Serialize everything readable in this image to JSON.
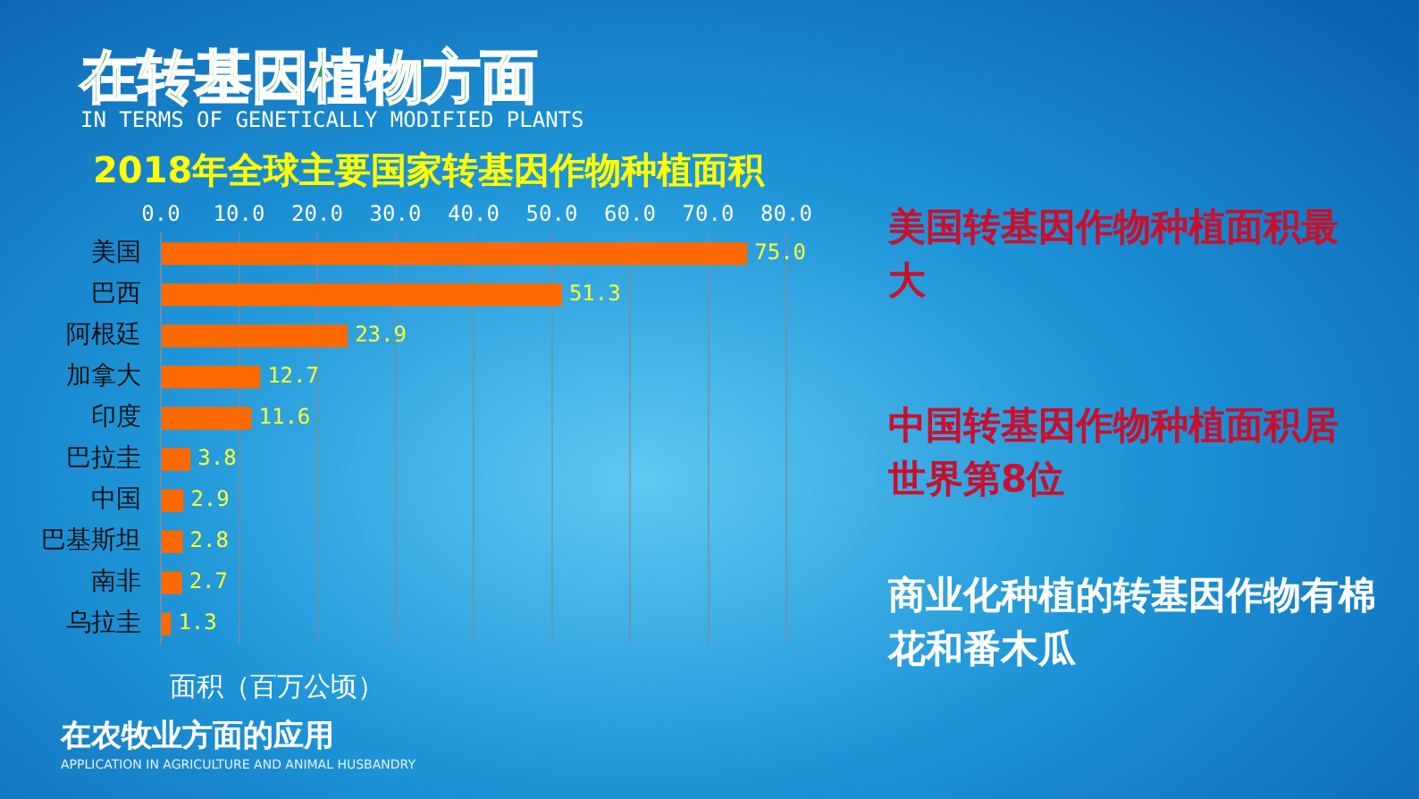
{
  "chart_data": {
    "type": "bar",
    "orientation": "horizontal",
    "title": "2018年全球主要国家转基因作物种植面积",
    "xlabel": "面积（百万公顷）",
    "categories": [
      "美国",
      "巴西",
      "阿根廷",
      "加拿大",
      "印度",
      "巴拉圭",
      "中国",
      "巴基斯坦",
      "南非",
      "乌拉圭"
    ],
    "values": [
      75.0,
      51.3,
      23.9,
      12.7,
      11.6,
      3.8,
      2.9,
      2.8,
      2.7,
      1.3
    ],
    "value_labels": [
      "75.0",
      "51.3",
      "23.9",
      "12.7",
      "11.6",
      "3.8",
      "2.9",
      "2.8",
      "2.7",
      "1.3"
    ],
    "color": "#ff6a00",
    "xlim": [
      0,
      80
    ],
    "xticks": [
      {
        "value": 0,
        "label": "0.0"
      },
      {
        "value": 10,
        "label": "10.0"
      },
      {
        "value": 20,
        "label": "20.0"
      },
      {
        "value": 30,
        "label": "30.0"
      },
      {
        "value": 40,
        "label": "40.0"
      },
      {
        "value": 50,
        "label": "50.0"
      },
      {
        "value": 60,
        "label": "60.0"
      },
      {
        "value": 70,
        "label": "70.0"
      },
      {
        "value": 80,
        "label": "80.0"
      }
    ],
    "grid": "x",
    "legend": false,
    "annotations": [
      "在转基因植物方面",
      "IN TERMS OF GENETICALLY MODIFIED PLANTS",
      "美国转基因作物种植面积最大",
      "中国转基因作物种植面积居世界第8位",
      "商业化种植的转基因作物有棉花和番木瓜",
      "在农牧业方面的应用",
      "APPLICATION IN AGRICULTURE AND ANIMAL HUSBANDRY"
    ]
  }
}
